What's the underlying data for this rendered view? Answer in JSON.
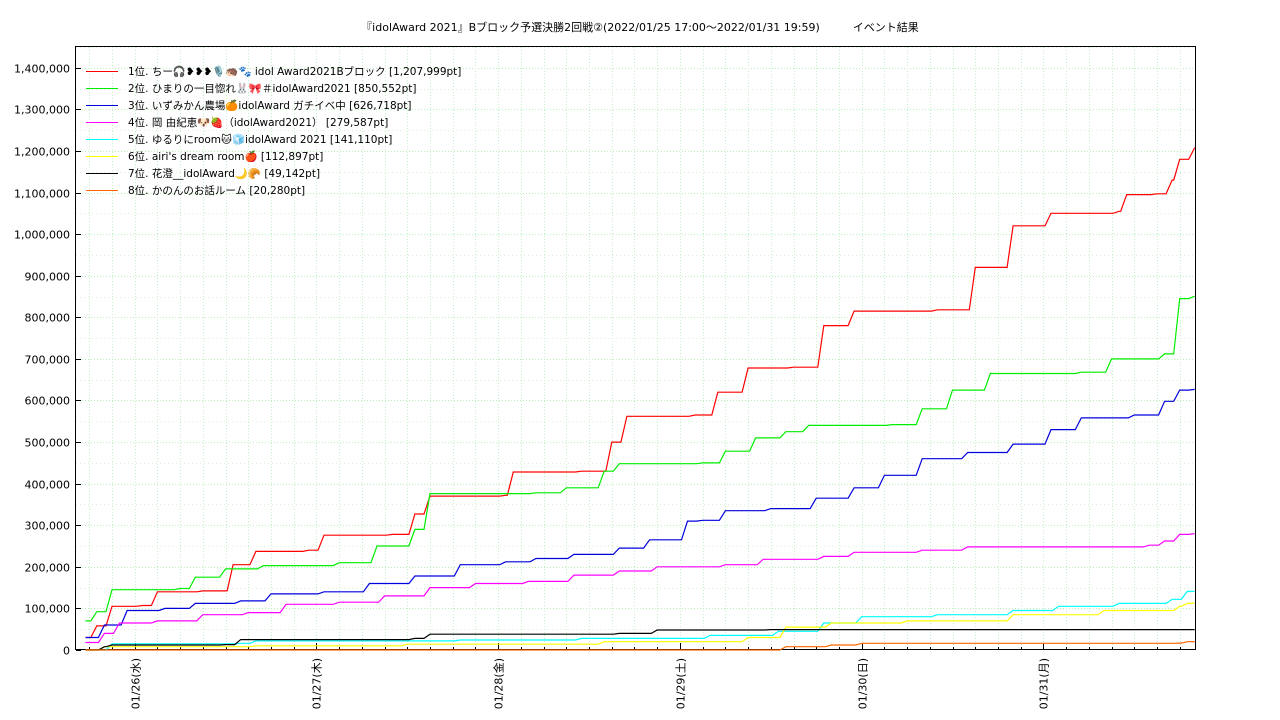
{
  "chart_data": {
    "type": "line",
    "title": "『idolAward 2021』Bブロック予選決勝2回戦②(2022/01/25 17:00～2022/01/31 19:59)　　　イベント結果",
    "xlabel": "",
    "ylabel": "",
    "x_range": [
      "2022-01-25 17:00",
      "2022-01-31 19:59"
    ],
    "ylim": [
      0,
      1450000
    ],
    "yticks": [
      0,
      100000,
      200000,
      300000,
      400000,
      500000,
      600000,
      700000,
      800000,
      900000,
      1000000,
      1100000,
      1200000,
      1300000,
      1400000
    ],
    "ytick_labels": [
      "0",
      "100,000",
      "200,000",
      "300,000",
      "400,000",
      "500,000",
      "600,000",
      "700,000",
      "800,000",
      "900,000",
      "1,000,000",
      "1,100,000",
      "1,200,000",
      "1,300,000",
      "1,400,000"
    ],
    "xtick_labels": [
      "01/26(水)",
      "01/27(木)",
      "01/28(金)",
      "01/29(土)",
      "01/30(日)",
      "01/31(月)"
    ],
    "grid": true,
    "legend_position": "top-left",
    "series": [
      {
        "name": "1位. ちー🎧❥❥❥🎙️🦔🐾 idol Award2021Bブロック [1,207,999pt]",
        "color": "#ff0000",
        "points": [
          [
            "2022-01-25 17:30",
            30000
          ],
          [
            "2022-01-25 19:00",
            58000
          ],
          [
            "2022-01-25 21:00",
            105000
          ],
          [
            "2022-01-26 01:00",
            107000
          ],
          [
            "2022-01-26 03:00",
            140000
          ],
          [
            "2022-01-26 09:00",
            142000
          ],
          [
            "2022-01-26 13:00",
            205000
          ],
          [
            "2022-01-26 16:00",
            237000
          ],
          [
            "2022-01-26 23:00",
            240000
          ],
          [
            "2022-01-27 01:00",
            276000
          ],
          [
            "2022-01-27 10:00",
            278000
          ],
          [
            "2022-01-27 13:00",
            327000
          ],
          [
            "2022-01-27 15:00",
            370000
          ],
          [
            "2022-01-28 01:00",
            372000
          ],
          [
            "2022-01-28 02:00",
            428000
          ],
          [
            "2022-01-28 11:00",
            430000
          ],
          [
            "2022-01-28 15:00",
            500000
          ],
          [
            "2022-01-28 17:00",
            562000
          ],
          [
            "2022-01-29 02:00",
            565000
          ],
          [
            "2022-01-29 05:00",
            620000
          ],
          [
            "2022-01-29 09:00",
            678000
          ],
          [
            "2022-01-29 15:00",
            680000
          ],
          [
            "2022-01-29 19:00",
            780000
          ],
          [
            "2022-01-29 23:00",
            815000
          ],
          [
            "2022-01-30 10:00",
            818000
          ],
          [
            "2022-01-30 15:00",
            920000
          ],
          [
            "2022-01-30 20:00",
            1020000
          ],
          [
            "2022-01-31 01:00",
            1050000
          ],
          [
            "2022-01-31 10:00",
            1055000
          ],
          [
            "2022-01-31 11:00",
            1095000
          ],
          [
            "2022-01-31 15:00",
            1097000
          ],
          [
            "2022-01-31 17:00",
            1130000
          ],
          [
            "2022-01-31 18:00",
            1180000
          ],
          [
            "2022-01-31 19:59",
            1207999
          ]
        ]
      },
      {
        "name": "2位. ひまりの一目惚れ🐰🎀＃idolAward2021 [850,552pt]",
        "color": "#00ee00",
        "points": [
          [
            "2022-01-25 17:30",
            70000
          ],
          [
            "2022-01-25 19:00",
            92000
          ],
          [
            "2022-01-25 21:00",
            145000
          ],
          [
            "2022-01-26 06:00",
            148000
          ],
          [
            "2022-01-26 08:00",
            175000
          ],
          [
            "2022-01-26 12:00",
            195000
          ],
          [
            "2022-01-26 17:00",
            203000
          ],
          [
            "2022-01-27 03:00",
            210000
          ],
          [
            "2022-01-27 08:00",
            250000
          ],
          [
            "2022-01-27 13:00",
            290000
          ],
          [
            "2022-01-27 15:00",
            376000
          ],
          [
            "2022-01-28 05:00",
            378000
          ],
          [
            "2022-01-28 09:00",
            390000
          ],
          [
            "2022-01-28 14:00",
            430000
          ],
          [
            "2022-01-28 16:00",
            448000
          ],
          [
            "2022-01-29 03:00",
            450000
          ],
          [
            "2022-01-29 06:00",
            478000
          ],
          [
            "2022-01-29 10:00",
            510000
          ],
          [
            "2022-01-29 14:00",
            525000
          ],
          [
            "2022-01-29 17:00",
            540000
          ],
          [
            "2022-01-30 04:00",
            542000
          ],
          [
            "2022-01-30 08:00",
            580000
          ],
          [
            "2022-01-30 12:00",
            625000
          ],
          [
            "2022-01-30 17:00",
            665000
          ],
          [
            "2022-01-31 05:00",
            668000
          ],
          [
            "2022-01-31 09:00",
            700000
          ],
          [
            "2022-01-31 16:00",
            712000
          ],
          [
            "2022-01-31 18:00",
            845000
          ],
          [
            "2022-01-31 19:59",
            850552
          ]
        ]
      },
      {
        "name": "3位. いずみかん農場🍊idolAward ガチイベ中 [626,718pt]",
        "color": "#0000dd",
        "points": [
          [
            "2022-01-25 17:30",
            30000
          ],
          [
            "2022-01-25 20:00",
            60000
          ],
          [
            "2022-01-25 23:00",
            95000
          ],
          [
            "2022-01-26 04:00",
            100000
          ],
          [
            "2022-01-26 08:00",
            112000
          ],
          [
            "2022-01-26 14:00",
            118000
          ],
          [
            "2022-01-26 18:00",
            135000
          ],
          [
            "2022-01-27 01:00",
            140000
          ],
          [
            "2022-01-27 07:00",
            160000
          ],
          [
            "2022-01-27 13:00",
            178000
          ],
          [
            "2022-01-27 19:00",
            205000
          ],
          [
            "2022-01-28 01:00",
            212000
          ],
          [
            "2022-01-28 05:00",
            220000
          ],
          [
            "2022-01-28 10:00",
            230000
          ],
          [
            "2022-01-28 16:00",
            245000
          ],
          [
            "2022-01-28 20:00",
            265000
          ],
          [
            "2022-01-29 01:00",
            310000
          ],
          [
            "2022-01-29 03:00",
            312000
          ],
          [
            "2022-01-29 06:00",
            335000
          ],
          [
            "2022-01-29 12:00",
            340000
          ],
          [
            "2022-01-29 18:00",
            365000
          ],
          [
            "2022-01-29 23:00",
            390000
          ],
          [
            "2022-01-30 03:00",
            420000
          ],
          [
            "2022-01-30 08:00",
            460000
          ],
          [
            "2022-01-30 14:00",
            475000
          ],
          [
            "2022-01-30 20:00",
            495000
          ],
          [
            "2022-01-31 01:00",
            530000
          ],
          [
            "2022-01-31 05:00",
            558000
          ],
          [
            "2022-01-31 12:00",
            565000
          ],
          [
            "2022-01-31 16:00",
            598000
          ],
          [
            "2022-01-31 18:00",
            625000
          ],
          [
            "2022-01-31 19:59",
            626718
          ]
        ]
      },
      {
        "name": "4位. 岡 由紀恵🐶🍓（idolAward2021） [279,587pt]",
        "color": "#ff00ff",
        "points": [
          [
            "2022-01-25 17:30",
            18000
          ],
          [
            "2022-01-25 20:00",
            40000
          ],
          [
            "2022-01-25 22:00",
            65000
          ],
          [
            "2022-01-26 03:00",
            70000
          ],
          [
            "2022-01-26 09:00",
            85000
          ],
          [
            "2022-01-26 15:00",
            90000
          ],
          [
            "2022-01-26 20:00",
            110000
          ],
          [
            "2022-01-27 03:00",
            115000
          ],
          [
            "2022-01-27 09:00",
            130000
          ],
          [
            "2022-01-27 15:00",
            150000
          ],
          [
            "2022-01-27 21:00",
            160000
          ],
          [
            "2022-01-28 04:00",
            165000
          ],
          [
            "2022-01-28 10:00",
            180000
          ],
          [
            "2022-01-28 16:00",
            190000
          ],
          [
            "2022-01-28 21:00",
            200000
          ],
          [
            "2022-01-29 06:00",
            205000
          ],
          [
            "2022-01-29 11:00",
            218000
          ],
          [
            "2022-01-29 19:00",
            225000
          ],
          [
            "2022-01-29 23:00",
            235000
          ],
          [
            "2022-01-30 08:00",
            240000
          ],
          [
            "2022-01-30 14:00",
            248000
          ],
          [
            "2022-01-31 14:00",
            252000
          ],
          [
            "2022-01-31 16:00",
            262000
          ],
          [
            "2022-01-31 18:00",
            278000
          ],
          [
            "2022-01-31 19:59",
            279587
          ]
        ]
      },
      {
        "name": "5位. ゆるりにroom🐱🧊idolAward 2021 [141,110pt]",
        "color": "#00ffff",
        "points": [
          [
            "2022-01-25 17:30",
            0
          ],
          [
            "2022-01-25 21:00",
            15000
          ],
          [
            "2022-01-26 14:00",
            16000
          ],
          [
            "2022-01-26 16:00",
            22000
          ],
          [
            "2022-01-27 19:00",
            24000
          ],
          [
            "2022-01-28 11:00",
            28000
          ],
          [
            "2022-01-29 04:00",
            35000
          ],
          [
            "2022-01-29 13:00",
            45000
          ],
          [
            "2022-01-29 19:00",
            65000
          ],
          [
            "2022-01-30 00:00",
            80000
          ],
          [
            "2022-01-30 10:00",
            85000
          ],
          [
            "2022-01-30 20:00",
            95000
          ],
          [
            "2022-01-31 02:00",
            105000
          ],
          [
            "2022-01-31 10:00",
            112000
          ],
          [
            "2022-01-31 17:00",
            122000
          ],
          [
            "2022-01-31 19:00",
            141000
          ],
          [
            "2022-01-31 19:59",
            141110
          ]
        ]
      },
      {
        "name": "6位. airi's dream room🍎 [112,897pt]",
        "color": "#ffff00",
        "points": [
          [
            "2022-01-25 17:30",
            0
          ],
          [
            "2022-01-25 20:00",
            8000
          ],
          [
            "2022-01-26 16:00",
            10000
          ],
          [
            "2022-01-27 12:00",
            14000
          ],
          [
            "2022-01-28 14:00",
            20000
          ],
          [
            "2022-01-29 09:00",
            30000
          ],
          [
            "2022-01-29 14:00",
            55000
          ],
          [
            "2022-01-29 20:00",
            65000
          ],
          [
            "2022-01-30 06:00",
            70000
          ],
          [
            "2022-01-30 20:00",
            85000
          ],
          [
            "2022-01-31 08:00",
            95000
          ],
          [
            "2022-01-31 18:00",
            105000
          ],
          [
            "2022-01-31 19:00",
            112000
          ],
          [
            "2022-01-31 19:59",
            112897
          ]
        ]
      },
      {
        "name": "7位. 花澄__idolAward🌙🥐 [49,142pt]",
        "color": "#000000",
        "points": [
          [
            "2022-01-25 17:30",
            0
          ],
          [
            "2022-01-25 19:00",
            0
          ],
          [
            "2022-01-25 20:00",
            8000
          ],
          [
            "2022-01-25 21:00",
            12000
          ],
          [
            "2022-01-26 12:00",
            13000
          ],
          [
            "2022-01-26 14:00",
            25000
          ],
          [
            "2022-01-27 13:00",
            28000
          ],
          [
            "2022-01-27 15:00",
            38000
          ],
          [
            "2022-01-28 16:00",
            40000
          ],
          [
            "2022-01-28 21:00",
            48000
          ],
          [
            "2022-01-29 12:00",
            49000
          ],
          [
            "2022-01-31 19:59",
            49142
          ]
        ]
      },
      {
        "name": "8位. かのんのお話ルーム [20,280pt]",
        "color": "#ff6600",
        "points": [
          [
            "2022-01-25 17:30",
            0
          ],
          [
            "2022-01-29 12:00",
            0
          ],
          [
            "2022-01-29 14:00",
            8000
          ],
          [
            "2022-01-29 20:00",
            12000
          ],
          [
            "2022-01-30 00:00",
            16000
          ],
          [
            "2022-01-31 18:00",
            16500
          ],
          [
            "2022-01-31 19:00",
            20000
          ],
          [
            "2022-01-31 19:59",
            20280
          ]
        ]
      }
    ]
  }
}
